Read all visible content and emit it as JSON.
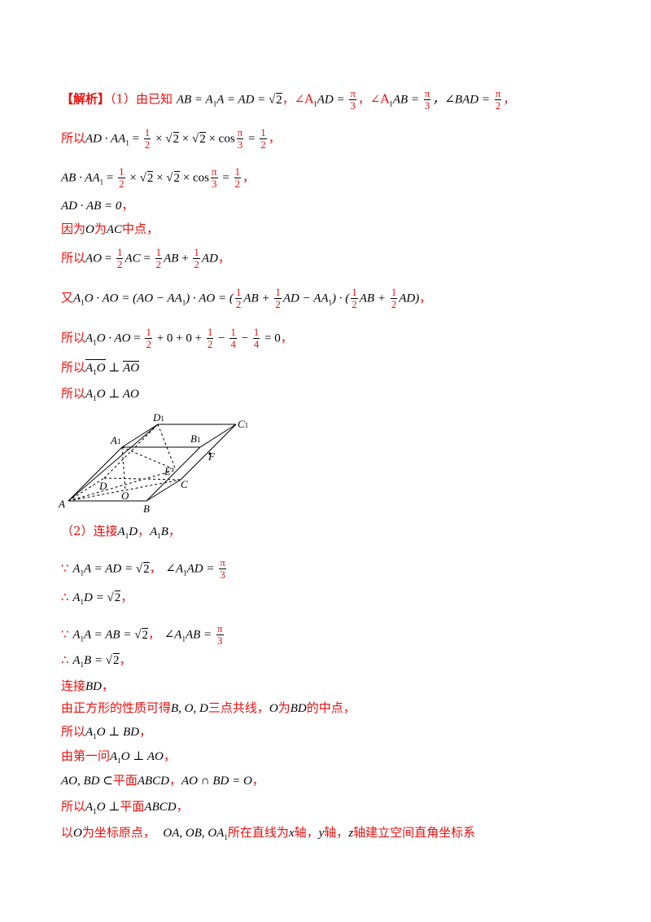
{
  "l1": {
    "tag": "【解析】",
    "a": "（1）由已知",
    "b": "AB = A",
    "b1": "1",
    "b2": "A = AD = ",
    "b3": "2",
    "c": "，∠A",
    "c1": "1",
    "c2": "AD = ",
    "pi": "π",
    "three": "3",
    "d": "，∠A",
    "d1": "1",
    "d2": "AB = ",
    "e": "，∠BAD = ",
    "two": "2",
    "f": "，"
  },
  "l2": {
    "a": "所以",
    "b": "AD · AA",
    "b1": "1",
    "c": " = ",
    "half": "1",
    "two": "2",
    "d": " × ",
    "r2": "2",
    "e": " × ",
    "f": " × cos",
    "g": " = ",
    "h": "，"
  },
  "l3": {
    "b": "AB · AA",
    "b1": "1",
    "c": " = ",
    "d": " × ",
    "f": " × cos",
    "g": " = ",
    "h": "，"
  },
  "l4": {
    "a": "AD · AB = 0",
    "b": "，"
  },
  "l5": {
    "a": "因为",
    "o": "O",
    "b": "为",
    "ac": "AC",
    "c": "中点，"
  },
  "l6": {
    "a": "所以",
    "b": "AO",
    "c": " = ",
    "d": "AC",
    "e": " = ",
    "f": "AB",
    "g": " + ",
    "h": "AD",
    "i": "，"
  },
  "l7": {
    "a": "又",
    "b": "A",
    "b1": "1",
    "b2": "O · AO",
    "c": " = (AO − AA",
    "c1": "1",
    "c2": ") · AO = (",
    "d": "AB + ",
    "e": "AD − AA",
    "e1": "1",
    "f": ") · (",
    "g": "AB + ",
    "h": "AD)",
    "i": "，"
  },
  "l8": {
    "a": "所以",
    "b": "A",
    "b1": "1",
    "b2": "O · AO",
    "c": " = ",
    "d": " + 0 + 0 + ",
    "e": " − ",
    "four": "4",
    "f": " − ",
    "g": " = 0",
    "h": "，"
  },
  "l9": {
    "a": "所以",
    "b": "A",
    "b1": "1",
    "b2": "O",
    "c": " ⊥ ",
    "d": "AO"
  },
  "l10": {
    "a": "所以",
    "b": "A",
    "b1": "1",
    "b2": "O ⊥ AO"
  },
  "figure": {
    "labels": [
      "D",
      "1",
      "C",
      "1",
      "A",
      "1",
      "B",
      "1",
      "F",
      "E",
      "D",
      "C",
      "O",
      "A",
      "B"
    ]
  },
  "l11": {
    "a": "（2）连接",
    "b": "A",
    "b1": "1",
    "b2": "D",
    "c": "，",
    "d": "A",
    "d1": "1",
    "d2": "B",
    "e": "，"
  },
  "l12": {
    "a": "∵",
    "b": "A",
    "b1": "1",
    "b2": "A = AD = ",
    "r2": "2",
    "c": "，",
    "d": "∠A",
    "d1": "1",
    "d2": "AD = ",
    "pi": "π",
    "three": "3"
  },
  "l13": {
    "a": "∴",
    "b": "A",
    "b1": "1",
    "b2": "D = ",
    "r2": "2",
    "c": "，"
  },
  "l14": {
    "a": "∵",
    "b": "A",
    "b1": "1",
    "b2": "A = AB = ",
    "r2": "2",
    "c": "，",
    "d": "∠A",
    "d1": "1",
    "d2": "AB = ",
    "pi": "π",
    "three": "3"
  },
  "l15": {
    "a": "∴",
    "b": "A",
    "b1": "1",
    "b2": "B = ",
    "r2": "2",
    "c": "，"
  },
  "l16": {
    "a": "连接",
    "b": "BD",
    "c": "，"
  },
  "l17": {
    "a": "由正方形的性质可得",
    "b": "B, O, D",
    "c": "三点共线，",
    "d": "O",
    "e": "为",
    "f": "BD",
    "g": "的中点，"
  },
  "l18": {
    "a": "所以",
    "b": "A",
    "b1": "1",
    "b2": "O ⊥ BD",
    "c": "，"
  },
  "l19": {
    "a": "由第一问",
    "b": "A",
    "b1": "1",
    "b2": "O ⊥ AO",
    "c": "，"
  },
  "l20": {
    "a": "AO, BD ⊂",
    "b": "平面",
    "c": "ABCD",
    "d": "，",
    "e": "AO ∩ BD = O",
    "f": "，"
  },
  "l21": {
    "a": "所以",
    "b": "A",
    "b1": "1",
    "b2": "O ⊥",
    "c": "平面",
    "d": "ABCD",
    "e": "，"
  },
  "l22": {
    "a": "以",
    "b": "O",
    "c": "为坐标原点，",
    "d": "OA, OB, OA",
    "d1": "1",
    "e": "所在直线为",
    "f": "x",
    "g": "轴，",
    "h": "y",
    "i": "轴，",
    "j": "z",
    "k": "轴建立空间直角坐标系"
  }
}
